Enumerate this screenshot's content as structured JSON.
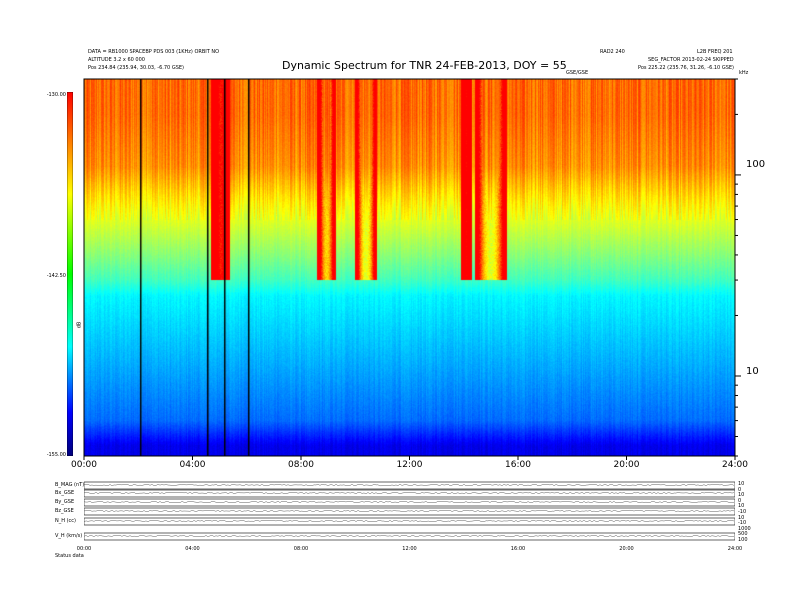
{
  "header": {
    "left_lines": [
      "DATA = RB1000 SPACEBP PDS 003 (1KHz)  ORBIT NO",
      "ALTITUDE 3.2 x 60 000",
      "Pos    234.84 (235.94, 30.03, -6.70 GSE)"
    ],
    "center_small": "GSE/GSE",
    "right_top_a": "RAD2 240",
    "right_top_b": "L2B FREQ 201",
    "right_line_2": "SEG_FACTOR  2013-02-24 SKIPPED",
    "right_line_3": "Pos    225.22 (235.76, 31.26, -6.10 GSE)",
    "right_corner": "kHz"
  },
  "chart_data": {
    "type": "heatmap",
    "title": "Dynamic Spectrum for TNR 24-FEB-2013, DOY = 55",
    "x_tick_labels": [
      "00:00",
      "04:00",
      "08:00",
      "12:00",
      "16:00",
      "20:00",
      "24:00"
    ],
    "x_range_hours": [
      0,
      24
    ],
    "y_right_scale": "log",
    "y_right_tick_labels": [
      "100",
      "10"
    ],
    "y_right_ticks": [
      100,
      10
    ],
    "y_right_range": [
      4,
      300
    ],
    "colorbar_labels": [
      "-130.00",
      "-142.50",
      "-155.00"
    ],
    "colorbar_range": [
      -155,
      -130
    ],
    "colorbar_unit": "dB",
    "colormap": [
      "#00007a",
      "#0000ff",
      "#0080ff",
      "#00ffff",
      "#80ff80",
      "#ffff00",
      "#ff8000",
      "#ff0000"
    ],
    "background_level_by_frequency": [
      {
        "khz": 200,
        "level": -133
      },
      {
        "khz": 110,
        "level": -134
      },
      {
        "khz": 70,
        "level": -137
      },
      {
        "khz": 55,
        "level": -138.5
      },
      {
        "khz": 40,
        "level": -140.5
      },
      {
        "khz": 30,
        "level": -142.5
      },
      {
        "khz": 25,
        "level": -144.5
      },
      {
        "khz": 12,
        "level": -146.5
      },
      {
        "khz": 6,
        "level": -148.5
      },
      {
        "khz": 4.5,
        "level": -152
      }
    ],
    "bursts": [
      {
        "start": 4.7,
        "end": 5.4,
        "level": -130.5
      },
      {
        "start": 8.6,
        "end": 9.3,
        "level": -136
      },
      {
        "start": 10.0,
        "end": 10.8,
        "level": -138
      },
      {
        "start": 13.9,
        "end": 14.3,
        "level": -129.5
      },
      {
        "start": 14.4,
        "end": 15.6,
        "level": -138
      }
    ],
    "data_gaps_hours": [
      2.05,
      4.55,
      5.15,
      6.05
    ]
  },
  "panels": {
    "row_labels": [
      "B_MAG (nT)",
      "Bx_GSE",
      "By_GSE",
      "Bz_GSE",
      "N_H (cc)",
      "V_H (km/s)"
    ],
    "right_labels": [
      "10",
      "0",
      "10",
      "0",
      "10",
      "-10",
      "10",
      "-10",
      "1000",
      "500",
      "100"
    ],
    "time_labels": [
      "00:00",
      "04:00",
      "08:00",
      "12:00",
      "16:00",
      "20:00",
      "24:00"
    ],
    "footer_left": "Status   data"
  }
}
